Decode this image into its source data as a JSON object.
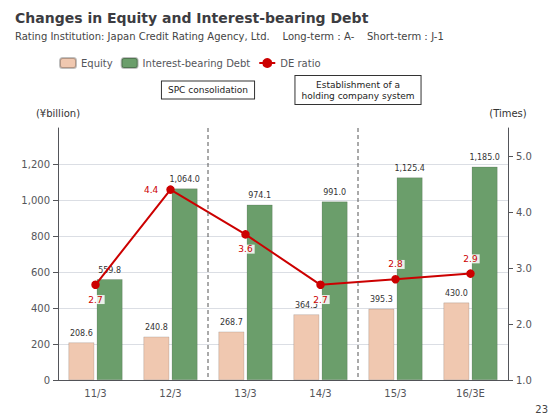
{
  "chart_data": {
    "type": "bar",
    "title": "Changes in Equity and Interest-bearing Debt",
    "subtitle": "Rating Institution: Japan Credit Rating Agency, Ltd.    Long-term：A-    Short-term：J-1",
    "categories": [
      "11/3",
      "12/3",
      "13/3",
      "14/3",
      "15/3",
      "16/3E"
    ],
    "series": [
      {
        "name": "Equity",
        "type": "bar",
        "color": "#f0c8b0",
        "values": [
          208.6,
          240.8,
          268.7,
          364.5,
          395.3,
          430.0
        ],
        "value_labels": [
          "208.6",
          "240.8",
          "268.7",
          "364.5",
          "395.3",
          "430.0"
        ]
      },
      {
        "name": "Interest-bearing Debt",
        "type": "bar",
        "color": "#6b9e6b",
        "values": [
          559.8,
          1064.0,
          974.1,
          991.0,
          1125.4,
          1185.0
        ],
        "value_labels": [
          "559.8",
          "1,064.0",
          "974.1",
          "991.0",
          "1,125.4",
          "1,185.0"
        ]
      },
      {
        "name": "DE ratio",
        "type": "line",
        "axis": "y2",
        "color": "#cc0000",
        "marker": "circle",
        "values": [
          2.7,
          4.4,
          3.6,
          2.7,
          2.8,
          2.9
        ],
        "value_labels": [
          "2.7",
          "4.4",
          "3.6",
          "2.7",
          "2.8",
          "2.9"
        ]
      }
    ],
    "ylabel": "(¥billion)",
    "y2label": "(Times)",
    "ylim": [
      0,
      1400
    ],
    "yticks": [
      0,
      200,
      400,
      600,
      800,
      {
        "value": 1000,
        "label": "1,000"
      },
      {
        "value": 1200,
        "label": "1,200"
      }
    ],
    "y2lim": [
      1.0,
      5.5
    ],
    "y2ticks": [
      {
        "value": 1.0,
        "label": "1.0"
      },
      {
        "value": 2.0,
        "label": "2.0"
      },
      {
        "value": 3.0,
        "label": "3.0"
      },
      {
        "value": 4.0,
        "label": "4.0"
      },
      {
        "value": 5.0,
        "label": "5.0"
      }
    ],
    "annotations": [
      "SPC consolidation",
      "Establishment of a\nholding company system",
      "23"
    ],
    "grid": true,
    "legend": "upper left",
    "data_labels": true
  }
}
